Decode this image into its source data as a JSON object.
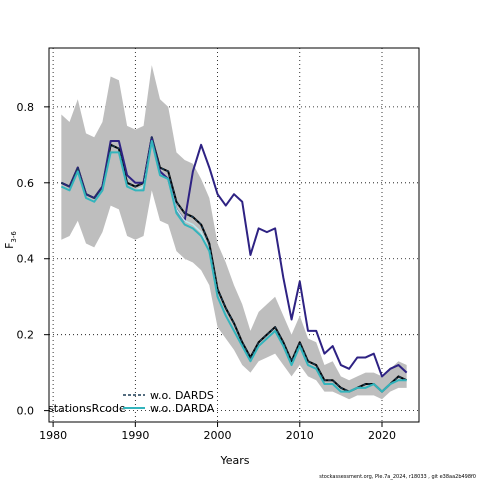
{
  "chart_data": {
    "type": "line",
    "xlabel": "Years",
    "ylabel": "F",
    "ylabel_sub": "3-6",
    "xlim": [
      1979.5,
      2024.5
    ],
    "ylim": [
      -0.03,
      0.955
    ],
    "x_ticks": [
      1980,
      1990,
      2000,
      2010,
      2020
    ],
    "y_ticks": [
      0.0,
      0.2,
      0.4,
      0.6,
      0.8
    ],
    "x_tick_labels": [
      "1980",
      "1990",
      "2000",
      "2010",
      "2020"
    ],
    "y_tick_labels": [
      "0.0",
      "0.2",
      "0.4",
      "0.6",
      "0.8"
    ],
    "grid": true,
    "legend_title": "stationsRcode",
    "legend_placement": "bottom-left",
    "footer": "stockassessment.org, Ple.7a_2024, r18033 , git e38aa2b498f0",
    "x": [
      1981,
      1982,
      1983,
      1984,
      1985,
      1986,
      1987,
      1988,
      1989,
      1990,
      1991,
      1992,
      1993,
      1994,
      1995,
      1996,
      1997,
      1998,
      1999,
      2000,
      2001,
      2002,
      2003,
      2004,
      2005,
      2006,
      2007,
      2008,
      2009,
      2010,
      2011,
      2012,
      2013,
      2014,
      2015,
      2016,
      2017,
      2018,
      2019,
      2020,
      2021,
      2022,
      2023
    ],
    "band": {
      "upper": [
        0.78,
        0.76,
        0.82,
        0.73,
        0.72,
        0.76,
        0.88,
        0.87,
        0.75,
        0.74,
        0.75,
        0.91,
        0.82,
        0.8,
        0.68,
        0.66,
        0.65,
        0.61,
        0.56,
        0.44,
        0.39,
        0.33,
        0.28,
        0.21,
        0.26,
        0.28,
        0.3,
        0.25,
        0.2,
        0.25,
        0.19,
        0.18,
        0.12,
        0.13,
        0.09,
        0.08,
        0.09,
        0.1,
        0.1,
        0.09,
        0.11,
        0.13,
        0.12
      ],
      "lower": [
        0.45,
        0.46,
        0.5,
        0.44,
        0.43,
        0.47,
        0.54,
        0.53,
        0.46,
        0.45,
        0.46,
        0.58,
        0.5,
        0.49,
        0.42,
        0.4,
        0.39,
        0.37,
        0.33,
        0.22,
        0.19,
        0.16,
        0.12,
        0.1,
        0.13,
        0.14,
        0.15,
        0.12,
        0.09,
        0.12,
        0.09,
        0.08,
        0.05,
        0.05,
        0.04,
        0.03,
        0.04,
        0.04,
        0.04,
        0.03,
        0.05,
        0.06,
        0.06
      ],
      "color": "#bebebe"
    },
    "series": [
      {
        "values": [
          0.6,
          0.59,
          0.64,
          0.57,
          0.56,
          0.59,
          0.7,
          0.69,
          0.6,
          0.59,
          0.6,
          0.72,
          0.64,
          0.63,
          0.55,
          0.52,
          0.51,
          0.49,
          0.44,
          0.32,
          0.27,
          0.23,
          0.18,
          0.14,
          0.18,
          0.2,
          0.22,
          0.18,
          0.13,
          0.18,
          0.13,
          0.12,
          0.08,
          0.08,
          0.06,
          0.05,
          0.06,
          0.07,
          0.07,
          0.05,
          0.07,
          0.09,
          0.08
        ],
        "color": "#000000",
        "width": 2,
        "dash": ""
      },
      {
        "values": [
          0.6,
          0.59,
          0.64,
          0.57,
          0.56,
          0.59,
          0.71,
          0.71,
          0.62,
          0.6,
          0.6,
          0.72,
          0.63,
          0.61,
          0.53,
          0.5,
          0.63,
          0.7,
          0.64,
          0.57,
          0.54,
          0.57,
          0.55,
          0.41,
          0.48,
          0.47,
          0.48,
          0.35,
          0.24,
          0.34,
          0.21,
          0.21,
          0.15,
          0.17,
          0.12,
          0.11,
          0.14,
          0.14,
          0.15,
          0.09,
          0.11,
          0.12,
          0.1
        ],
        "color": "#2e2283",
        "width": 2,
        "dash": ""
      },
      {
        "values": [
          0.59,
          0.58,
          0.63,
          0.56,
          0.55,
          0.58,
          0.68,
          0.68,
          0.59,
          0.58,
          0.59,
          0.71,
          0.62,
          0.61,
          0.53,
          0.5,
          0.49,
          0.47,
          0.42,
          0.3,
          0.25,
          0.21,
          0.17,
          0.13,
          0.17,
          0.19,
          0.21,
          0.17,
          0.12,
          0.17,
          0.12,
          0.11,
          0.07,
          0.07,
          0.05,
          0.05,
          0.06,
          0.06,
          0.07,
          0.05,
          0.07,
          0.08,
          0.08
        ],
        "color": "#bfe8ee",
        "width": 1.5,
        "dash": ""
      },
      {
        "name": "w.o. DARDS",
        "values": [
          0.6,
          0.59,
          0.64,
          0.57,
          0.56,
          0.59,
          0.7,
          0.69,
          0.6,
          0.59,
          0.6,
          0.72,
          0.64,
          0.63,
          0.55,
          0.52,
          0.51,
          0.49,
          0.44,
          0.32,
          0.27,
          0.23,
          0.18,
          0.14,
          0.18,
          0.2,
          0.22,
          0.18,
          0.13,
          0.18,
          0.13,
          0.12,
          0.08,
          0.08,
          0.06,
          0.05,
          0.06,
          0.07,
          0.07,
          0.05,
          0.07,
          0.09,
          0.08
        ],
        "color": "#1a3c55",
        "width": 1.2,
        "dash": "3,2"
      },
      {
        "name": "w.o. DARDA",
        "values": [
          0.59,
          0.58,
          0.63,
          0.56,
          0.55,
          0.58,
          0.68,
          0.68,
          0.59,
          0.58,
          0.58,
          0.71,
          0.62,
          0.61,
          0.52,
          0.49,
          0.48,
          0.46,
          0.42,
          0.3,
          0.25,
          0.21,
          0.17,
          0.13,
          0.17,
          0.19,
          0.21,
          0.17,
          0.12,
          0.17,
          0.12,
          0.11,
          0.07,
          0.07,
          0.05,
          0.05,
          0.06,
          0.06,
          0.07,
          0.05,
          0.07,
          0.08,
          0.08
        ],
        "color": "#33b4bc",
        "width": 2,
        "dash": ""
      }
    ]
  }
}
